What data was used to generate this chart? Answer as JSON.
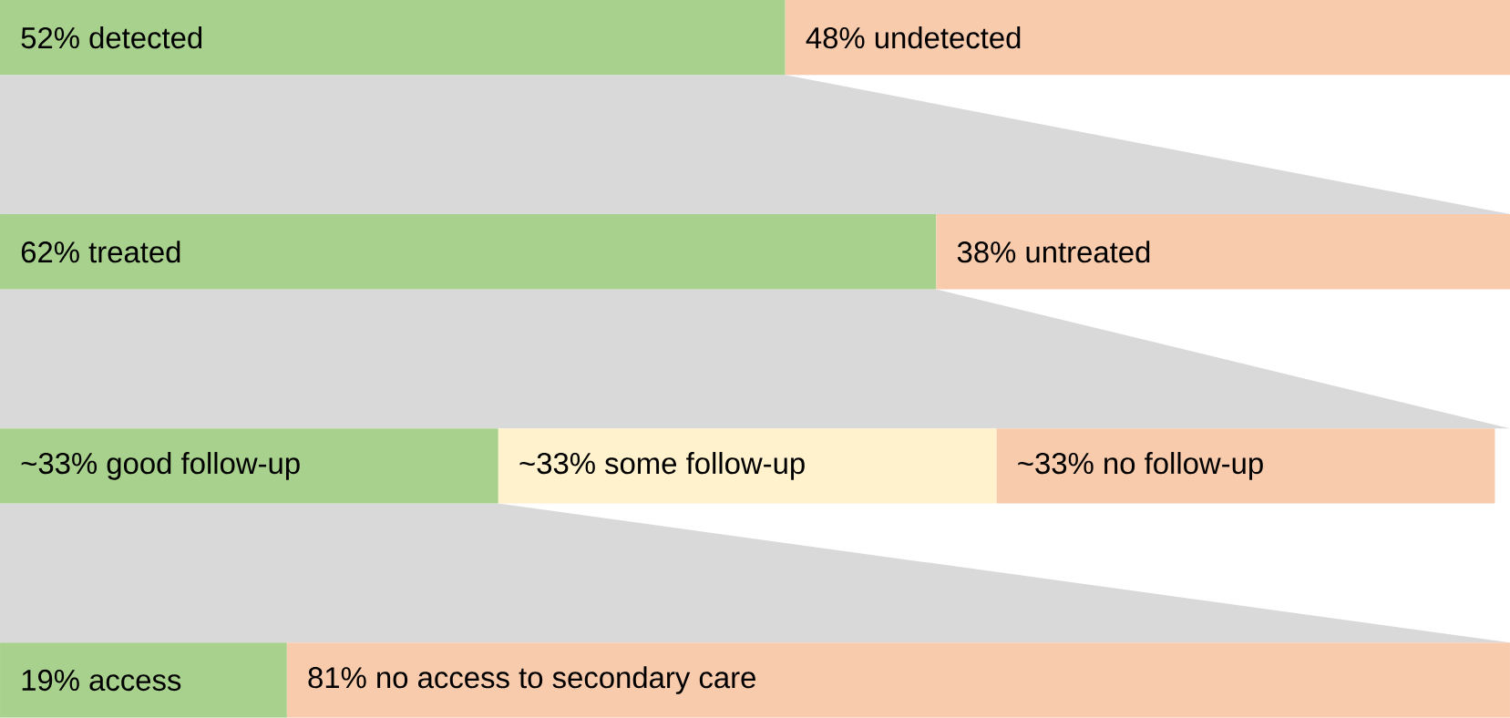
{
  "chart_data": {
    "type": "bar",
    "orientation": "horizontal",
    "stacked": true,
    "xlim": [
      0,
      100
    ],
    "tick_labels": false,
    "categories": [
      null,
      null,
      null,
      null
    ],
    "series": [
      {
        "color": "#a9d18e",
        "values": [
          52,
          62,
          33,
          19
        ],
        "value_labels": [
          "52% detected",
          "62% treated",
          "~33% good follow-up",
          "19% access"
        ]
      },
      {
        "color": "#fff2cc",
        "values": [
          null,
          null,
          33,
          null
        ],
        "value_labels": [
          null,
          null,
          "~33% some follow-up",
          null
        ]
      },
      {
        "color": "#f8cbad",
        "values": [
          48,
          38,
          33,
          81
        ],
        "value_labels": [
          "48% undetected",
          "38% untreated",
          "~33% no follow-up",
          "81% no access to secondary care"
        ]
      }
    ]
  }
}
